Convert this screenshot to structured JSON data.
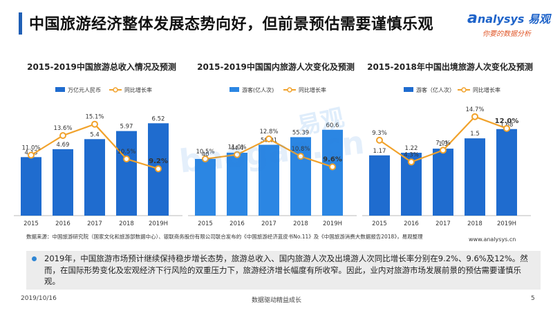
{
  "header": {
    "title": "中国旅游经济整体发展态势向好，但前景预估需要谨慎乐观",
    "logo_main": "nalysys 易观",
    "logo_sub": "你要的数据分析"
  },
  "watermark": {
    "text1": "易观",
    "text2": "baogao.cn"
  },
  "colors": {
    "bar": "#1f6ccf",
    "bar_light": "#2b86e3",
    "line": "#f1a22b",
    "accent": "#1f5fb5"
  },
  "chart_data": [
    {
      "type": "bar+line",
      "title": "2015-2019中国旅游总收入情况及预测",
      "categories": [
        "2015",
        "2016",
        "2017",
        "2018",
        "2019H"
      ],
      "series": [
        {
          "name": "万亿元人民币",
          "type": "bar",
          "values": [
            4.13,
            4.69,
            5.4,
            5.97,
            6.52
          ],
          "labels": [
            "4.13",
            "4.69",
            "5.4",
            "5.97",
            "6.52"
          ]
        },
        {
          "name": "同比增长率",
          "type": "line",
          "values": [
            11.0,
            13.6,
            15.1,
            10.5,
            9.2
          ],
          "labels": [
            "11.0%",
            "13.6%",
            "15.1%",
            "10.5%",
            "9.2%"
          ]
        }
      ],
      "bar_max": 8,
      "line_range": [
        3,
        18
      ],
      "legend": "top-left"
    },
    {
      "type": "bar+line",
      "title": "2015-2019中国国内旅游人次变化及预测",
      "categories": [
        "2015",
        "2016",
        "2017",
        "2018",
        "2019H"
      ],
      "series": [
        {
          "name": "游客(亿人次)",
          "type": "bar",
          "values": [
            40,
            44.4,
            50.01,
            55.39,
            60.6
          ],
          "labels": [
            "40",
            "44.4",
            "50.01",
            "55.39",
            "60.6"
          ]
        },
        {
          "name": "同比增长率",
          "type": "line",
          "values": [
            10.5,
            11.0,
            12.8,
            10.8,
            9.6
          ],
          "labels": [
            "10.5%",
            "11.0%",
            "12.8%",
            "10.8%",
            "9.6%"
          ]
        }
      ],
      "bar_max": 80,
      "line_range": [
        4,
        17
      ],
      "legend": "top-left"
    },
    {
      "type": "bar+line",
      "title": "2015-2018年中国出境旅游人次变化及预测",
      "categories": [
        "2015",
        "2016",
        "2017",
        "2018",
        "2019H"
      ],
      "series": [
        {
          "name": "游客（亿人次）",
          "type": "bar",
          "values": [
            1.17,
            1.22,
            1.3,
            1.5,
            1.68
          ],
          "labels": [
            "1.17",
            "1.22",
            "1.3",
            "1.5",
            "1.68"
          ]
        },
        {
          "name": "同比增长率",
          "type": "line",
          "values": [
            9.3,
            4.3,
            7.0,
            14.7,
            12.0
          ],
          "labels": [
            "9.3%",
            "4.3%",
            "7.0%",
            "14.7%",
            "12.0%"
          ]
        }
      ],
      "bar_max": 2.2,
      "line_range": [
        -8,
        18
      ],
      "legend": "top-left"
    }
  ],
  "source": {
    "text": "数据来源：中国旅游研究院（国家文化和旅游部数据中心）、银联商务股份有限公司联合发布的《中国旅游经济蓝皮书No.11》及《中国旅游消费大数据报告2018》，易观整理",
    "website": "www.analysys.cn"
  },
  "note": "2019年，中国旅游市场预计继续保持稳步增长态势，旅游总收入、国内旅游人次及出境游人次同比增长率分别在9.2%、9.6%及12%。然而，在国际形势变化及宏观经济下行风险的双重压力下，旅游经济增长幅度有所收窄。因此，业内对旅游市场发展前景的预估需要谨慎乐观。",
  "footer": {
    "date": "2019/10/16",
    "center": "数据驱动精益成长",
    "page": "5"
  }
}
